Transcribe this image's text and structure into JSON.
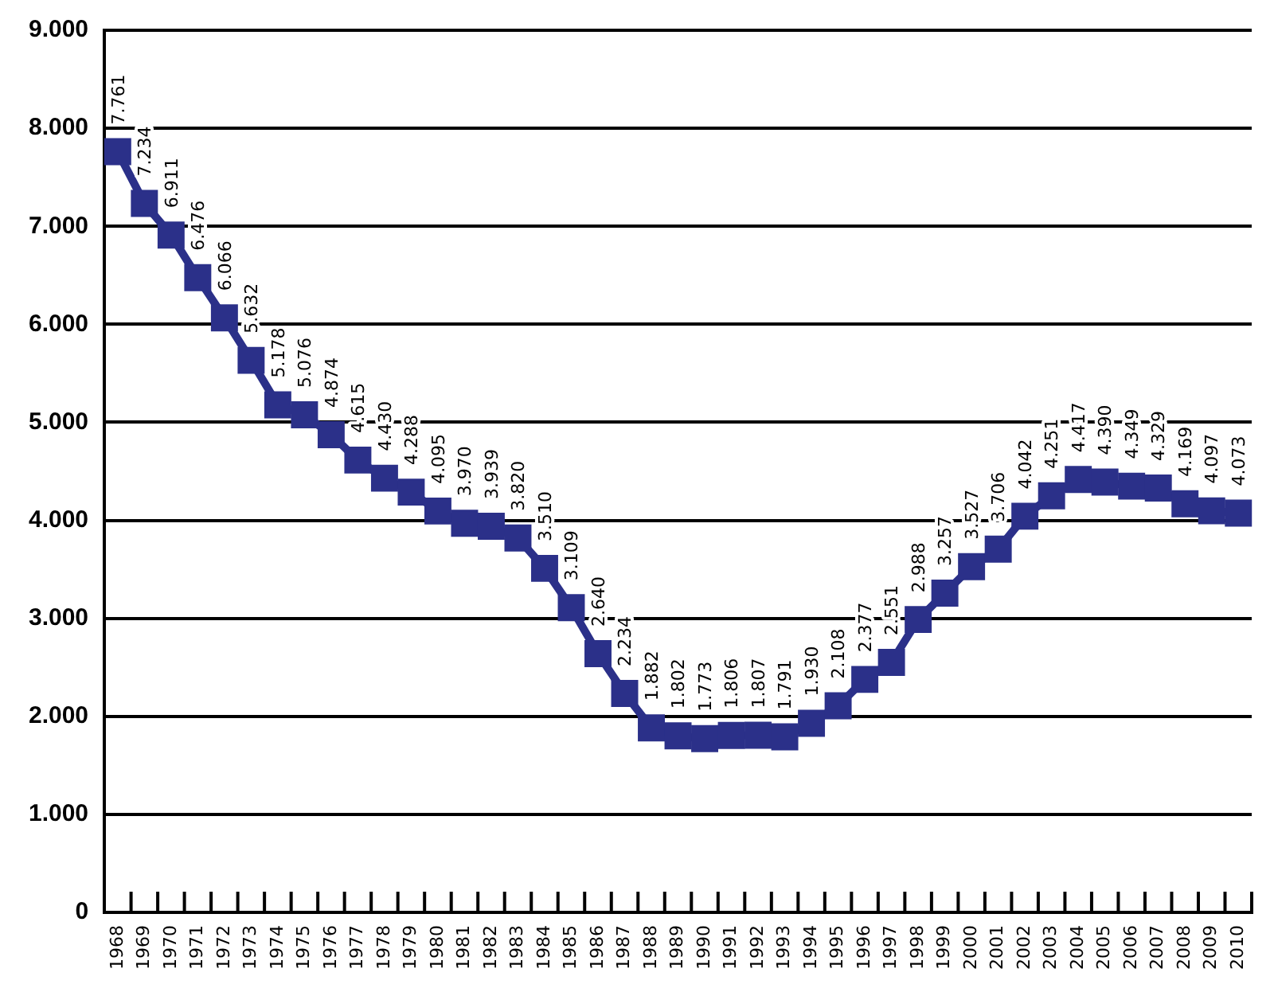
{
  "chart_data": {
    "type": "line",
    "categories": [
      "1968",
      "1969",
      "1970",
      "1971",
      "1972",
      "1973",
      "1974",
      "1975",
      "1976",
      "1977",
      "1978",
      "1979",
      "1980",
      "1981",
      "1982",
      "1983",
      "1984",
      "1985",
      "1986",
      "1987",
      "1988",
      "1989",
      "1990",
      "1991",
      "1992",
      "1993",
      "1994",
      "1995",
      "1996",
      "1997",
      "1998",
      "1999",
      "2000",
      "2001",
      "2002",
      "2003",
      "2004",
      "2005",
      "2006",
      "2007",
      "2008",
      "2009",
      "2010"
    ],
    "series": [
      {
        "color": "#2b3089",
        "values": [
          7761,
          7234,
          6911,
          6476,
          6066,
          5632,
          5178,
          5076,
          4874,
          4615,
          4430,
          4288,
          4095,
          3970,
          3939,
          3820,
          3510,
          3109,
          2640,
          2234,
          1882,
          1802,
          1773,
          1806,
          1807,
          1791,
          1930,
          2108,
          2377,
          2551,
          2988,
          3257,
          3527,
          3706,
          4042,
          4251,
          4417,
          4390,
          4349,
          4329,
          4169,
          4097,
          4073
        ],
        "value_labels": [
          "7.761",
          "7.234",
          "6.911",
          "6.476",
          "6.066",
          "5.632",
          "5.178",
          "5.076",
          "4.874",
          "4.615",
          "4.430",
          "4.288",
          "4.095",
          "3.970",
          "3.939",
          "3.820",
          "3.510",
          "3.109",
          "2.640",
          "2.234",
          "1.882",
          "1.802",
          "1.773",
          "1.806",
          "1.807",
          "1.791",
          "1.930",
          "2.108",
          "2.377",
          "2.551",
          "2.988",
          "3.257",
          "3.527",
          "3.706",
          "4.042",
          "4.251",
          "4.417",
          "4.390",
          "4.349",
          "4.329",
          "4.169",
          "4.097",
          "4.073"
        ]
      }
    ],
    "ylim": [
      0,
      9000
    ],
    "yticks": [
      0,
      {
        "value": 1000,
        "label": "1.000"
      },
      {
        "value": 2000,
        "label": "2.000"
      },
      {
        "value": 3000,
        "label": "3.000"
      },
      {
        "value": 4000,
        "label": "4.000"
      },
      {
        "value": 5000,
        "label": "5.000"
      },
      {
        "value": 6000,
        "label": "6.000"
      },
      {
        "value": 7000,
        "label": "7.000"
      },
      {
        "value": 8000,
        "label": "8.000"
      },
      {
        "value": 9000,
        "label": "9.000"
      }
    ],
    "grid": "y",
    "marker": "square",
    "line_style": "solid"
  }
}
